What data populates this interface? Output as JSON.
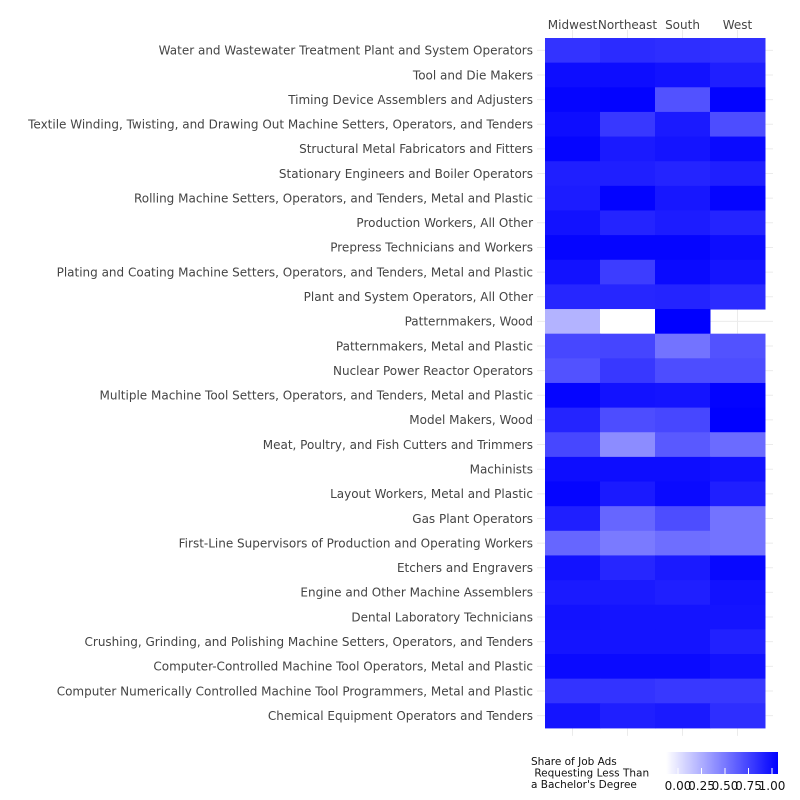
{
  "chart_data": {
    "type": "heatmap",
    "columns": [
      "Midwest",
      "Northeast",
      "South",
      "West"
    ],
    "rows": [
      "Water and Wastewater Treatment Plant and System Operators",
      "Tool and Die Makers",
      "Timing Device Assemblers and Adjusters",
      "Textile Winding, Twisting, and Drawing Out Machine Setters, Operators, and Tenders",
      "Structural Metal Fabricators and Fitters",
      "Stationary Engineers and Boiler Operators",
      "Rolling Machine Setters, Operators, and Tenders, Metal and Plastic",
      "Production Workers, All Other",
      "Prepress Technicians and Workers",
      "Plating and Coating Machine Setters, Operators, and Tenders, Metal and Plastic",
      "Plant and System Operators, All Other",
      "Patternmakers, Wood",
      "Patternmakers, Metal and Plastic",
      "Nuclear Power Reactor Operators",
      "Multiple Machine Tool Setters, Operators, and Tenders, Metal and Plastic",
      "Model Makers, Wood",
      "Meat, Poultry, and Fish Cutters and Trimmers",
      "Machinists",
      "Layout Workers, Metal and Plastic",
      "Gas Plant Operators",
      "First-Line Supervisors of Production and Operating Workers",
      "Etchers and Engravers",
      "Engine and Other Machine Assemblers",
      "Dental Laboratory Technicians",
      "Crushing, Grinding, and Polishing Machine Setters, Operators, and Tenders",
      "Computer-Controlled Machine Tool Operators, Metal and Plastic",
      "Computer Numerically Controlled Machine Tool Programmers, Metal and Plastic",
      "Chemical Equipment Operators and Tenders"
    ],
    "values": [
      [
        0.8,
        0.83,
        0.82,
        0.81
      ],
      [
        0.95,
        0.95,
        0.93,
        0.88
      ],
      [
        0.98,
        0.99,
        0.68,
        0.99
      ],
      [
        0.95,
        0.78,
        0.9,
        0.7
      ],
      [
        0.98,
        0.9,
        0.92,
        0.96
      ],
      [
        0.88,
        0.88,
        0.86,
        0.88
      ],
      [
        0.89,
        0.99,
        0.91,
        0.98
      ],
      [
        0.93,
        0.86,
        0.89,
        0.86
      ],
      [
        0.98,
        0.98,
        0.98,
        0.95
      ],
      [
        0.93,
        0.76,
        0.96,
        0.92
      ],
      [
        0.85,
        0.85,
        0.86,
        0.83
      ],
      [
        0.3,
        0.0,
        1.0,
        null
      ],
      [
        0.72,
        0.73,
        0.55,
        0.68
      ],
      [
        0.68,
        0.78,
        0.7,
        0.7
      ],
      [
        0.98,
        0.93,
        0.92,
        0.99
      ],
      [
        0.86,
        0.7,
        0.72,
        1.0
      ],
      [
        0.72,
        0.45,
        0.65,
        0.58
      ],
      [
        0.95,
        0.95,
        0.95,
        0.93
      ],
      [
        0.98,
        0.9,
        0.96,
        0.88
      ],
      [
        0.88,
        0.6,
        0.7,
        0.55
      ],
      [
        0.6,
        0.52,
        0.57,
        0.55
      ],
      [
        0.93,
        0.85,
        0.9,
        0.97
      ],
      [
        0.9,
        0.9,
        0.88,
        0.93
      ],
      [
        0.93,
        0.92,
        0.92,
        0.92
      ],
      [
        0.92,
        0.92,
        0.92,
        0.87
      ],
      [
        0.96,
        0.96,
        0.96,
        0.93
      ],
      [
        0.8,
        0.8,
        0.78,
        0.78
      ],
      [
        0.92,
        0.88,
        0.9,
        0.82
      ]
    ],
    "legend": {
      "title_lines": [
        "Share of Job Ads",
        " Requesting Less Than",
        "a Bachelor's Degree"
      ],
      "ticks": [
        "0.00",
        "0.25",
        "0.50",
        "0.75",
        "1.00"
      ],
      "range": [
        0,
        1
      ],
      "position": "bottom-right"
    },
    "color_low": "#ffffff",
    "color_high": "#0000ff",
    "missing_color": "#ffffff",
    "grid": true
  }
}
